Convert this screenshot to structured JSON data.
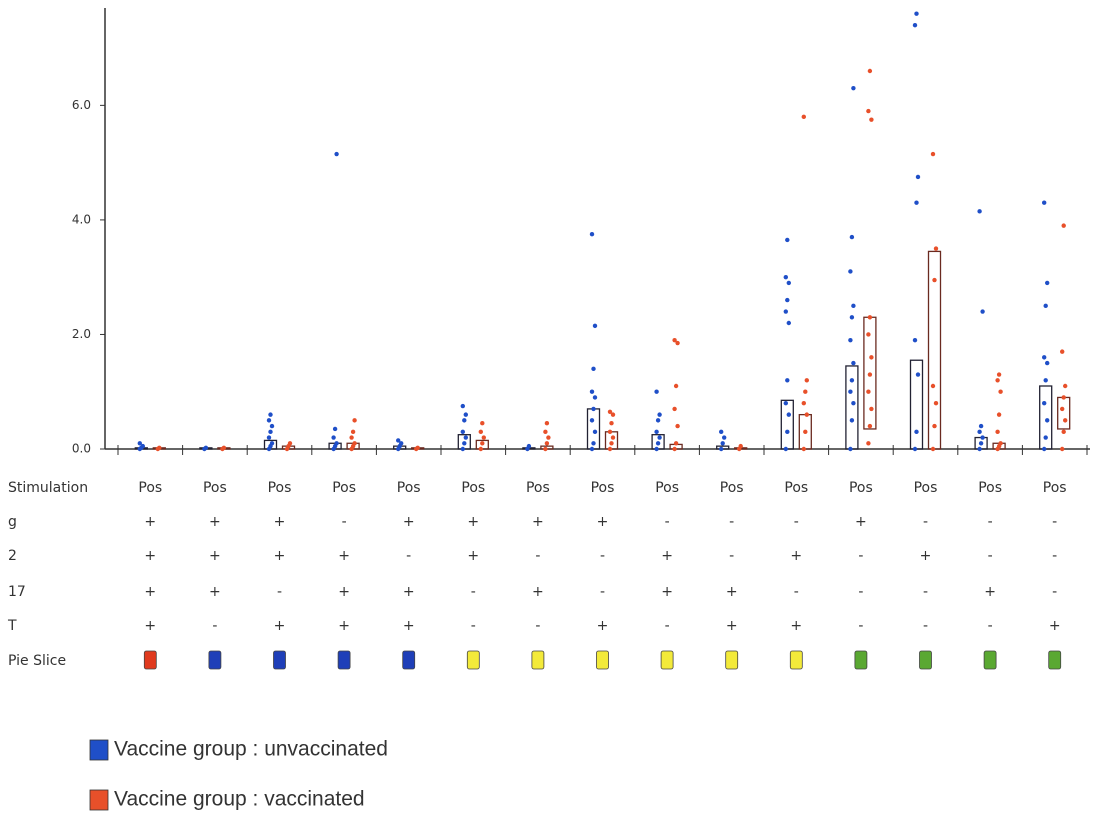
{
  "chart_data": {
    "type": "box_dot",
    "ylim": [
      0,
      7.7
    ],
    "yticks": [
      {
        "value": 0,
        "label": "0.0"
      },
      {
        "value": 2,
        "label": "2.0"
      },
      {
        "value": 4,
        "label": "4.0"
      },
      {
        "value": 6,
        "label": "6.0"
      }
    ],
    "series": [
      {
        "name": "Vaccine group : unvaccinated",
        "color": "#1f4fc8",
        "box_low": [
          0,
          0,
          0,
          0,
          0,
          0,
          0,
          0,
          0,
          0,
          0,
          0,
          0,
          0,
          0
        ],
        "box_high": [
          0.02,
          0.02,
          0.15,
          0.1,
          0.05,
          0.25,
          0.02,
          0.7,
          0.25,
          0.05,
          0.85,
          1.45,
          1.55,
          0.2,
          1.1
        ],
        "points": [
          [
            0,
            0.02,
            0.05,
            0.1
          ],
          [
            0,
            0.02
          ],
          [
            0,
            0.05,
            0.1,
            0.2,
            0.3,
            0.4,
            0.5,
            0.6
          ],
          [
            0,
            0.05,
            0.1,
            0.2,
            0.35,
            5.15
          ],
          [
            0,
            0.05,
            0.1,
            0.15
          ],
          [
            0,
            0.1,
            0.2,
            0.3,
            0.5,
            0.6,
            0.75
          ],
          [
            0,
            0.05
          ],
          [
            0,
            0.1,
            0.3,
            0.5,
            0.7,
            0.9,
            1.0,
            1.4,
            2.15,
            3.75
          ],
          [
            0,
            0.1,
            0.2,
            0.3,
            0.5,
            0.6,
            1.0
          ],
          [
            0,
            0.1,
            0.2,
            0.3
          ],
          [
            0,
            0.3,
            0.6,
            0.8,
            1.2,
            2.2,
            2.4,
            2.6,
            2.9,
            3.0,
            3.65
          ],
          [
            0,
            0.5,
            0.8,
            1.0,
            1.2,
            1.5,
            1.9,
            2.3,
            2.5,
            3.1,
            3.7,
            6.3
          ],
          [
            0,
            0.3,
            1.3,
            1.9,
            4.3,
            4.75,
            7.4,
            7.6
          ],
          [
            0,
            0.1,
            0.2,
            0.3,
            0.4,
            2.4,
            4.15
          ],
          [
            0,
            0.2,
            0.5,
            0.8,
            1.2,
            1.5,
            1.6,
            2.5,
            2.9,
            4.3
          ]
        ]
      },
      {
        "name": "Vaccine group : vaccinated",
        "color": "#e8502a",
        "box_low": [
          0,
          0,
          0,
          0,
          0,
          0,
          0,
          0,
          0,
          0,
          0,
          0.35,
          0,
          0,
          0.35
        ],
        "box_high": [
          0.02,
          0.02,
          0.05,
          0.1,
          0.02,
          0.15,
          0.05,
          0.3,
          0.08,
          0.02,
          0.6,
          2.3,
          3.45,
          0.1,
          0.9
        ],
        "points": [
          [
            0,
            0.02
          ],
          [
            0,
            0.02
          ],
          [
            0,
            0.05,
            0.1
          ],
          [
            0,
            0.05,
            0.1,
            0.2,
            0.3,
            0.5
          ],
          [
            0,
            0.02
          ],
          [
            0,
            0.1,
            0.2,
            0.3,
            0.45
          ],
          [
            0,
            0.1,
            0.2,
            0.3,
            0.45
          ],
          [
            0,
            0.1,
            0.2,
            0.3,
            0.45,
            0.6,
            0.65
          ],
          [
            0,
            0.1,
            0.4,
            0.7,
            1.1,
            1.85,
            1.9
          ],
          [
            0,
            0.05
          ],
          [
            0,
            0.3,
            0.6,
            0.8,
            1.0,
            1.2,
            5.8
          ],
          [
            0.1,
            0.4,
            0.7,
            1.0,
            1.3,
            1.6,
            2.0,
            2.3,
            5.75,
            5.9,
            6.6
          ],
          [
            0,
            0.4,
            0.8,
            1.1,
            2.95,
            3.5,
            5.15
          ],
          [
            0,
            0.05,
            0.1,
            0.3,
            0.6,
            1.0,
            1.2,
            1.3
          ],
          [
            0,
            0.3,
            0.5,
            0.7,
            0.9,
            1.1,
            1.7,
            3.9
          ]
        ]
      }
    ],
    "table": {
      "rows": [
        {
          "label": "Stimulation",
          "values": [
            "Pos",
            "Pos",
            "Pos",
            "Pos",
            "Pos",
            "Pos",
            "Pos",
            "Pos",
            "Pos",
            "Pos",
            "Pos",
            "Pos",
            "Pos",
            "Pos",
            "Pos"
          ]
        },
        {
          "label": "g",
          "values": [
            "+",
            "+",
            "+",
            "-",
            "+",
            "+",
            "+",
            "+",
            "-",
            "-",
            "-",
            "+",
            "-",
            "-",
            "-"
          ]
        },
        {
          "label": "2",
          "values": [
            "+",
            "+",
            "+",
            "+",
            "-",
            "+",
            "-",
            "-",
            "+",
            "-",
            "+",
            "-",
            "+",
            "-",
            "-"
          ]
        },
        {
          "label": "17",
          "values": [
            "+",
            "+",
            "-",
            "+",
            "+",
            "-",
            "+",
            "-",
            "+",
            "+",
            "-",
            "-",
            "-",
            "+",
            "-"
          ]
        },
        {
          "label": "T",
          "values": [
            "+",
            "-",
            "+",
            "+",
            "+",
            "-",
            "-",
            "+",
            "-",
            "+",
            "+",
            "-",
            "-",
            "-",
            "+"
          ]
        }
      ]
    },
    "pie_slice_label": "Pie Slice",
    "pie_slice_colors": [
      "#e03a1e",
      "#1f3fb8",
      "#1f3fb8",
      "#1f3fb8",
      "#1f3fb8",
      "#f3ea3a",
      "#f3ea3a",
      "#f3ea3a",
      "#f3ea3a",
      "#f3ea3a",
      "#f3ea3a",
      "#5aa832",
      "#5aa832",
      "#5aa832",
      "#5aa832"
    ]
  }
}
